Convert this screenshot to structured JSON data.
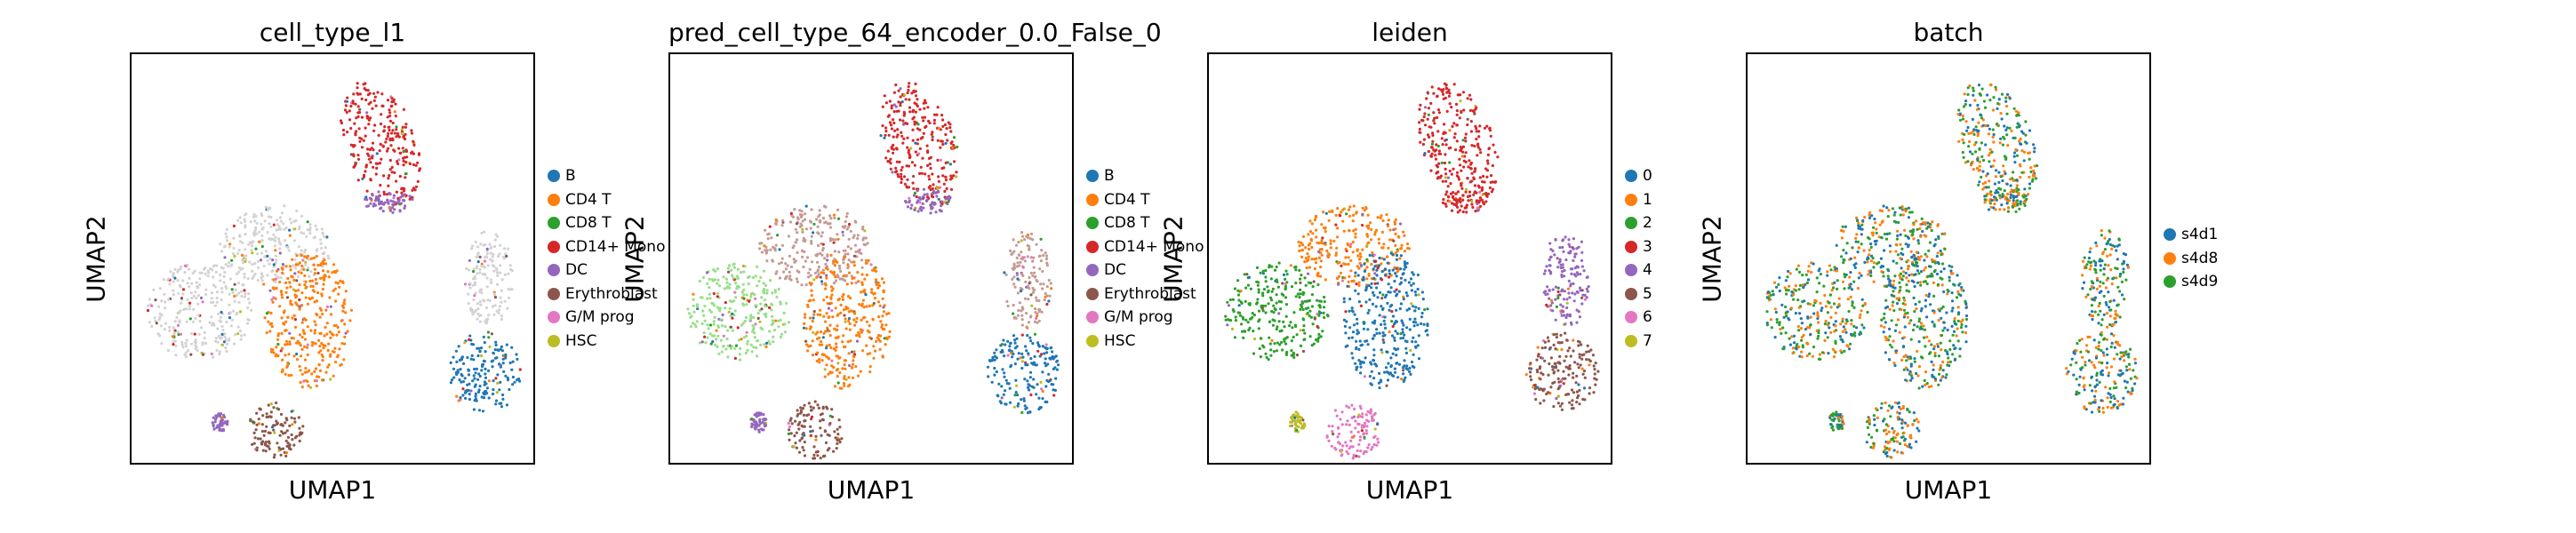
{
  "chart_data": [
    {
      "type": "scatter",
      "title": "cell_type_l1",
      "xlabel": "UMAP1",
      "ylabel": "UMAP2",
      "legend_position": "right",
      "legend": [
        {
          "label": "B",
          "color": "#1f77b4"
        },
        {
          "label": "CD4 T",
          "color": "#ff7f0e"
        },
        {
          "label": "CD8 T",
          "color": "#2ca02c"
        },
        {
          "label": "CD14+ Mono",
          "color": "#d62728"
        },
        {
          "label": "DC",
          "color": "#9467bd"
        },
        {
          "label": "Erythroblast",
          "color": "#8c564b"
        },
        {
          "label": "G/M prog",
          "color": "#e377c2"
        },
        {
          "label": "HSC",
          "color": "#bcbd22"
        }
      ]
    },
    {
      "type": "scatter",
      "title": "pred_cell_type_64_encoder_0.0_False_0",
      "xlabel": "UMAP1",
      "ylabel": "UMAP2",
      "legend_position": "right",
      "legend": [
        {
          "label": "B",
          "color": "#1f77b4"
        },
        {
          "label": "CD4 T",
          "color": "#ff7f0e"
        },
        {
          "label": "CD8 T",
          "color": "#2ca02c"
        },
        {
          "label": "CD14+ Mono",
          "color": "#d62728"
        },
        {
          "label": "DC",
          "color": "#9467bd"
        },
        {
          "label": "Erythroblast",
          "color": "#8c564b"
        },
        {
          "label": "G/M prog",
          "color": "#e377c2"
        },
        {
          "label": "HSC",
          "color": "#bcbd22"
        }
      ]
    },
    {
      "type": "scatter",
      "title": "leiden",
      "xlabel": "UMAP1",
      "ylabel": "UMAP2",
      "legend_position": "right",
      "legend": [
        {
          "label": "0",
          "color": "#1f77b4"
        },
        {
          "label": "1",
          "color": "#ff7f0e"
        },
        {
          "label": "2",
          "color": "#2ca02c"
        },
        {
          "label": "3",
          "color": "#d62728"
        },
        {
          "label": "4",
          "color": "#9467bd"
        },
        {
          "label": "5",
          "color": "#8c564b"
        },
        {
          "label": "6",
          "color": "#e377c2"
        },
        {
          "label": "7",
          "color": "#bcbd22"
        }
      ]
    },
    {
      "type": "scatter",
      "title": "batch",
      "xlabel": "UMAP1",
      "ylabel": "UMAP2",
      "legend_position": "right",
      "legend": [
        {
          "label": "s4d1",
          "color": "#1f77b4"
        },
        {
          "label": "s4d8",
          "color": "#ff7f0e"
        },
        {
          "label": "s4d9",
          "color": "#2ca02c"
        }
      ]
    }
  ]
}
